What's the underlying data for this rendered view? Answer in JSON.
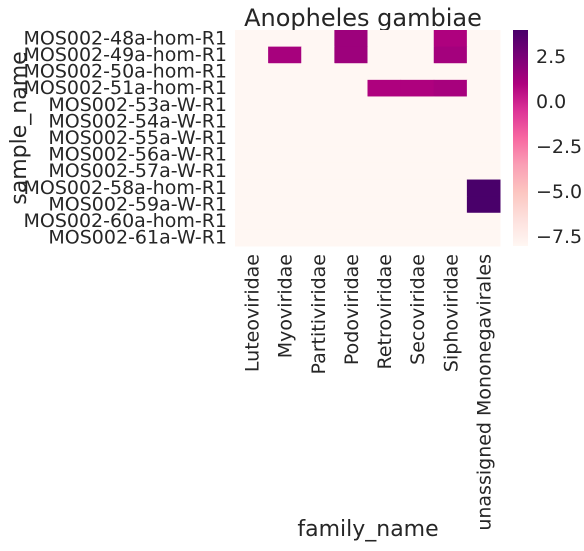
{
  "chart_data": {
    "type": "heatmap",
    "title": "Anopheles gambiae",
    "xlabel": "family_name",
    "ylabel": "sample_name",
    "rows": [
      "MOS002-48a-hom-R1",
      "MOS002-49a-hom-R1",
      "MOS002-50a-hom-R1",
      "MOS002-51a-hom-R1",
      "MOS002-53a-W-R1",
      "MOS002-54a-W-R1",
      "MOS002-55a-W-R1",
      "MOS002-56a-W-R1",
      "MOS002-57a-W-R1",
      "MOS002-58a-hom-R1",
      "MOS002-59a-W-R1",
      "MOS002-60a-hom-R1",
      "MOS002-61a-W-R1"
    ],
    "columns": [
      "Luteoviridae",
      "Myoviridae",
      "Partitiviridae",
      "Podoviridae",
      "Retroviridae",
      "Secoviridae",
      "Siphoviridae",
      "unassigned Mononegavirales"
    ],
    "values": [
      [
        -8,
        -8,
        -8,
        1.5,
        -8,
        -8,
        1.0,
        -8
      ],
      [
        -8,
        1.2,
        -8,
        1.5,
        -8,
        -8,
        1.3,
        -8
      ],
      [
        -8,
        -8,
        -8,
        -8,
        -8,
        -8,
        -8,
        -8
      ],
      [
        -8,
        -8,
        -8,
        -8,
        1.0,
        1.0,
        1.2,
        -8
      ],
      [
        -8,
        -8,
        -8,
        -8,
        -8,
        -8,
        -8,
        -8
      ],
      [
        -8,
        -8,
        -8,
        -8,
        -8,
        -8,
        -8,
        -8
      ],
      [
        -8,
        -8,
        -8,
        -8,
        -8,
        -8,
        -8,
        -8
      ],
      [
        -8,
        -8,
        -8,
        -8,
        -8,
        -8,
        -8,
        -8
      ],
      [
        -8,
        -8,
        -8,
        -8,
        -8,
        -8,
        -8,
        -8
      ],
      [
        -8,
        -8,
        -8,
        -8,
        -8,
        -8,
        -8,
        4.0
      ],
      [
        -8,
        -8,
        -8,
        -8,
        -8,
        -8,
        -8,
        4.0
      ],
      [
        -8,
        -8,
        -8,
        -8,
        -8,
        -8,
        -8,
        -8
      ],
      [
        -8,
        -8,
        -8,
        -8,
        -8,
        -8,
        -8,
        -8
      ]
    ],
    "colorbar": {
      "range": [
        -8,
        4
      ],
      "ticks": [
        2.5,
        0.0,
        -2.5,
        -5.0,
        -7.5
      ],
      "tick_labels": [
        "2.5",
        "0.0",
        "−2.5",
        "−5.0",
        "−7.5"
      ],
      "colormap": "RdPu",
      "colors": [
        "#fff7f3",
        "#fde0dd",
        "#fcc5c0",
        "#fa9fb5",
        "#f768a1",
        "#dd3497",
        "#ae017e",
        "#7a0177",
        "#49006a"
      ]
    },
    "grid": false
  }
}
